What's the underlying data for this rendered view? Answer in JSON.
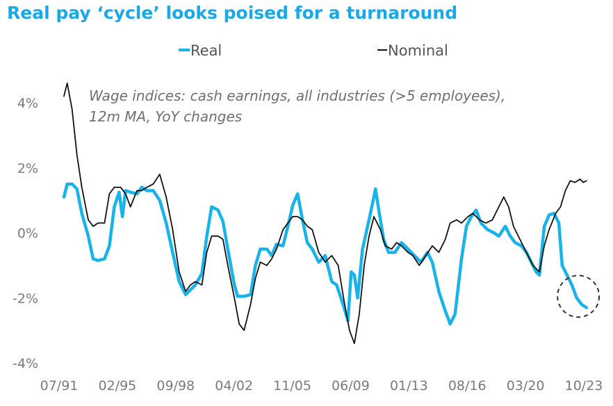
{
  "title": "Real pay ‘cycle’ looks poised for a turnaround",
  "colors": {
    "real": "#17b3ea",
    "nominal": "#111111",
    "title": "#1aa8e8"
  },
  "chart_data": {
    "type": "line",
    "title": "Real pay ‘cycle’ looks poised for a turnaround",
    "annotation": [
      "Wage indices: cash earnings, all industries (>5 employees),",
      "12m MA, YoY changes"
    ],
    "legend": {
      "placement": "top",
      "items": [
        {
          "label": "Real"
        },
        {
          "label": "Nominal"
        }
      ]
    },
    "grid": false,
    "x_ticks": [
      "07/91",
      "02/95",
      "09/98",
      "04/02",
      "11/05",
      "06/09",
      "01/13",
      "08/16",
      "03/20",
      "10/23"
    ],
    "y_ticks": [
      "4%",
      "2%",
      "0%",
      "-2%",
      "-4%"
    ],
    "ylim": [
      -4,
      4
    ],
    "xlim": [
      1991.5,
      2023.75
    ],
    "highlight": {
      "shape": "dashed-circle",
      "x": 2023.2,
      "y": -1.95
    },
    "series": [
      {
        "name": "Real",
        "points": [
          [
            1991.5,
            1.1
          ],
          [
            1991.7,
            1.5
          ],
          [
            1992.0,
            1.5
          ],
          [
            1992.3,
            1.35
          ],
          [
            1992.6,
            0.6
          ],
          [
            1993.0,
            -0.1
          ],
          [
            1993.3,
            -0.8
          ],
          [
            1993.6,
            -0.85
          ],
          [
            1994.0,
            -0.8
          ],
          [
            1994.3,
            -0.4
          ],
          [
            1994.6,
            0.8
          ],
          [
            1994.9,
            1.25
          ],
          [
            1995.1,
            0.5
          ],
          [
            1995.3,
            1.3
          ],
          [
            1995.6,
            1.25
          ],
          [
            1996.0,
            1.2
          ],
          [
            1996.3,
            1.4
          ],
          [
            1996.6,
            1.3
          ],
          [
            1997.0,
            1.3
          ],
          [
            1997.4,
            1.0
          ],
          [
            1997.8,
            0.3
          ],
          [
            1998.2,
            -0.6
          ],
          [
            1998.6,
            -1.5
          ],
          [
            1999.0,
            -1.9
          ],
          [
            1999.3,
            -1.75
          ],
          [
            1999.6,
            -1.6
          ],
          [
            2000.0,
            -1.25
          ],
          [
            2000.3,
            -0.1
          ],
          [
            2000.6,
            0.8
          ],
          [
            2001.0,
            0.7
          ],
          [
            2001.3,
            0.35
          ],
          [
            2001.6,
            -0.5
          ],
          [
            2002.0,
            -1.6
          ],
          [
            2002.2,
            -1.95
          ],
          [
            2002.6,
            -1.95
          ],
          [
            2003.0,
            -1.9
          ],
          [
            2003.3,
            -1.0
          ],
          [
            2003.6,
            -0.5
          ],
          [
            2004.0,
            -0.5
          ],
          [
            2004.3,
            -0.7
          ],
          [
            2004.6,
            -0.35
          ],
          [
            2005.0,
            -0.4
          ],
          [
            2005.3,
            0.2
          ],
          [
            2005.6,
            0.85
          ],
          [
            2005.9,
            1.2
          ],
          [
            2006.2,
            0.4
          ],
          [
            2006.5,
            -0.3
          ],
          [
            2006.8,
            -0.5
          ],
          [
            2007.2,
            -0.9
          ],
          [
            2007.6,
            -0.7
          ],
          [
            2008.0,
            -1.5
          ],
          [
            2008.3,
            -1.6
          ],
          [
            2008.7,
            -2.2
          ],
          [
            2009.0,
            -2.7
          ],
          [
            2009.2,
            -1.2
          ],
          [
            2009.4,
            -1.3
          ],
          [
            2009.6,
            -2.0
          ],
          [
            2009.9,
            -0.5
          ],
          [
            2010.3,
            0.4
          ],
          [
            2010.7,
            1.35
          ],
          [
            2010.9,
            0.7
          ],
          [
            2011.2,
            -0.2
          ],
          [
            2011.5,
            -0.6
          ],
          [
            2011.9,
            -0.6
          ],
          [
            2012.3,
            -0.3
          ],
          [
            2012.7,
            -0.5
          ],
          [
            2013.1,
            -0.7
          ],
          [
            2013.5,
            -0.9
          ],
          [
            2013.9,
            -0.6
          ],
          [
            2014.2,
            -0.9
          ],
          [
            2014.6,
            -1.8
          ],
          [
            2015.0,
            -2.4
          ],
          [
            2015.3,
            -2.8
          ],
          [
            2015.6,
            -2.5
          ],
          [
            2016.0,
            -0.8
          ],
          [
            2016.3,
            0.2
          ],
          [
            2016.6,
            0.5
          ],
          [
            2016.9,
            0.7
          ],
          [
            2017.2,
            0.3
          ],
          [
            2017.6,
            0.1
          ],
          [
            2018.0,
            0.0
          ],
          [
            2018.3,
            -0.1
          ],
          [
            2018.7,
            0.2
          ],
          [
            2019.0,
            -0.1
          ],
          [
            2019.3,
            -0.3
          ],
          [
            2019.7,
            -0.4
          ],
          [
            2020.0,
            -0.6
          ],
          [
            2020.3,
            -0.9
          ],
          [
            2020.6,
            -1.2
          ],
          [
            2020.8,
            -1.3
          ],
          [
            2021.1,
            0.2
          ],
          [
            2021.4,
            0.55
          ],
          [
            2021.7,
            0.6
          ],
          [
            2022.0,
            0.3
          ],
          [
            2022.2,
            -1.0
          ],
          [
            2022.5,
            -1.3
          ],
          [
            2022.8,
            -1.6
          ],
          [
            2023.1,
            -2.0
          ],
          [
            2023.4,
            -2.2
          ],
          [
            2023.7,
            -2.3
          ]
        ]
      },
      {
        "name": "Nominal",
        "points": [
          [
            1991.5,
            4.2
          ],
          [
            1991.7,
            4.6
          ],
          [
            1992.0,
            3.8
          ],
          [
            1992.3,
            2.4
          ],
          [
            1992.6,
            1.4
          ],
          [
            1993.0,
            0.4
          ],
          [
            1993.3,
            0.2
          ],
          [
            1993.6,
            0.3
          ],
          [
            1994.0,
            0.3
          ],
          [
            1994.3,
            1.2
          ],
          [
            1994.6,
            1.4
          ],
          [
            1995.0,
            1.4
          ],
          [
            1995.3,
            1.2
          ],
          [
            1995.6,
            0.8
          ],
          [
            1996.0,
            1.3
          ],
          [
            1996.3,
            1.3
          ],
          [
            1996.6,
            1.4
          ],
          [
            1997.0,
            1.5
          ],
          [
            1997.4,
            1.8
          ],
          [
            1997.8,
            1.1
          ],
          [
            1998.2,
            0.1
          ],
          [
            1998.6,
            -1.2
          ],
          [
            1999.0,
            -1.8
          ],
          [
            1999.3,
            -1.6
          ],
          [
            1999.6,
            -1.5
          ],
          [
            2000.0,
            -1.6
          ],
          [
            2000.3,
            -0.6
          ],
          [
            2000.6,
            -0.1
          ],
          [
            2001.0,
            -0.1
          ],
          [
            2001.3,
            -0.2
          ],
          [
            2001.6,
            -1.0
          ],
          [
            2002.0,
            -2.0
          ],
          [
            2002.3,
            -2.8
          ],
          [
            2002.6,
            -3.0
          ],
          [
            2003.0,
            -2.2
          ],
          [
            2003.3,
            -1.4
          ],
          [
            2003.6,
            -0.9
          ],
          [
            2004.0,
            -1.0
          ],
          [
            2004.3,
            -0.8
          ],
          [
            2004.6,
            -0.5
          ],
          [
            2005.0,
            0.1
          ],
          [
            2005.3,
            0.3
          ],
          [
            2005.6,
            0.5
          ],
          [
            2005.9,
            0.5
          ],
          [
            2006.2,
            0.4
          ],
          [
            2006.5,
            0.2
          ],
          [
            2006.8,
            0.1
          ],
          [
            2007.2,
            -0.6
          ],
          [
            2007.6,
            -0.9
          ],
          [
            2008.0,
            -0.7
          ],
          [
            2008.4,
            -1.0
          ],
          [
            2008.8,
            -2.2
          ],
          [
            2009.1,
            -3.0
          ],
          [
            2009.4,
            -3.4
          ],
          [
            2009.7,
            -2.5
          ],
          [
            2010.0,
            -1.0
          ],
          [
            2010.3,
            -0.1
          ],
          [
            2010.6,
            0.5
          ],
          [
            2011.0,
            0.1
          ],
          [
            2011.3,
            -0.4
          ],
          [
            2011.7,
            -0.5
          ],
          [
            2012.0,
            -0.3
          ],
          [
            2012.3,
            -0.4
          ],
          [
            2012.7,
            -0.6
          ],
          [
            2013.0,
            -0.7
          ],
          [
            2013.4,
            -1.0
          ],
          [
            2013.8,
            -0.7
          ],
          [
            2014.2,
            -0.4
          ],
          [
            2014.6,
            -0.6
          ],
          [
            2015.0,
            -0.2
          ],
          [
            2015.3,
            0.3
          ],
          [
            2015.7,
            0.4
          ],
          [
            2016.0,
            0.3
          ],
          [
            2016.4,
            0.5
          ],
          [
            2016.7,
            0.6
          ],
          [
            2017.1,
            0.4
          ],
          [
            2017.5,
            0.3
          ],
          [
            2017.9,
            0.4
          ],
          [
            2018.2,
            0.7
          ],
          [
            2018.6,
            1.1
          ],
          [
            2018.9,
            0.8
          ],
          [
            2019.2,
            0.2
          ],
          [
            2019.6,
            -0.2
          ],
          [
            2020.0,
            -0.6
          ],
          [
            2020.4,
            -1.0
          ],
          [
            2020.8,
            -1.2
          ],
          [
            2021.1,
            -0.4
          ],
          [
            2021.4,
            0.1
          ],
          [
            2021.8,
            0.6
          ],
          [
            2022.1,
            0.8
          ],
          [
            2022.4,
            1.3
          ],
          [
            2022.7,
            1.6
          ],
          [
            2023.0,
            1.55
          ],
          [
            2023.3,
            1.65
          ],
          [
            2023.5,
            1.55
          ],
          [
            2023.7,
            1.6
          ]
        ]
      }
    ]
  }
}
